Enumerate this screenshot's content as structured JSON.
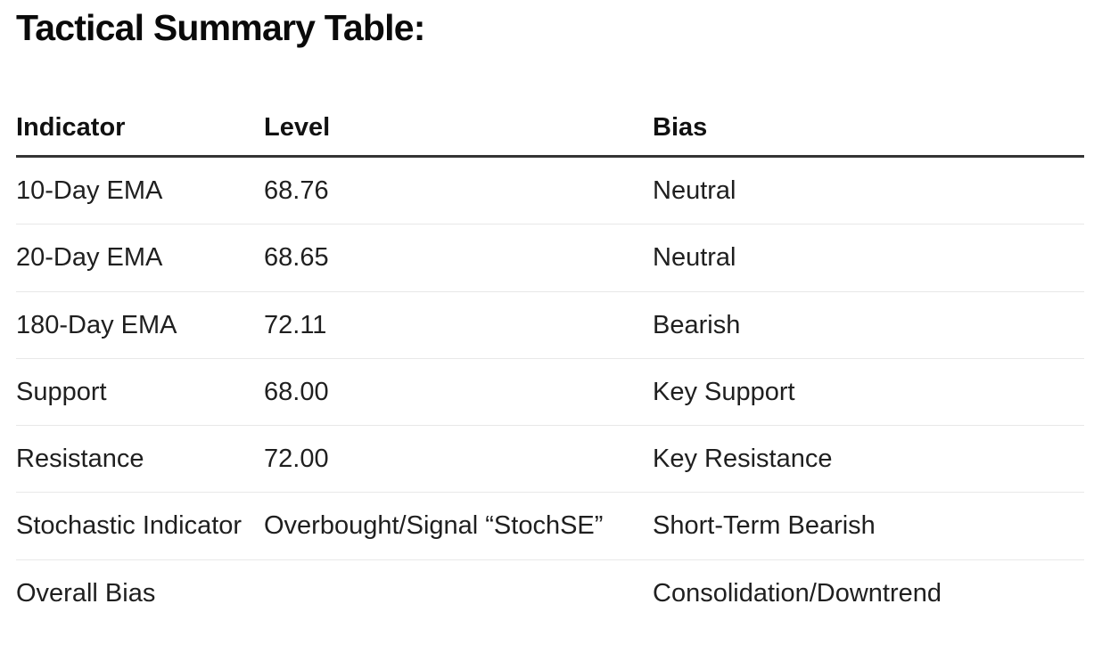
{
  "page": {
    "title": "Tactical Summary Table:"
  },
  "colors": {
    "background": "#ffffff",
    "title_text": "#0a0a0a",
    "body_text": "#1f1f1f",
    "header_rule": "#343434",
    "row_rule": "#e8e8e8"
  },
  "table": {
    "columns": [
      {
        "label": "Indicator"
      },
      {
        "label": "Level"
      },
      {
        "label": "Bias"
      }
    ],
    "rows": [
      {
        "indicator": "10-Day EMA",
        "level": "68.76",
        "bias": "Neutral"
      },
      {
        "indicator": "20-Day EMA",
        "level": "68.65",
        "bias": "Neutral"
      },
      {
        "indicator": "180-Day EMA",
        "level": "72.11",
        "bias": "Bearish"
      },
      {
        "indicator": "Support",
        "level": "68.00",
        "bias": "Key Support"
      },
      {
        "indicator": "Resistance",
        "level": "72.00",
        "bias": "Key Resistance"
      },
      {
        "indicator": "Stochastic Indicator",
        "level": "Overbought/Signal “StochSE”",
        "bias": "Short-Term Bearish"
      },
      {
        "indicator": "Overall Bias",
        "level": "",
        "bias": "Consolidation/Downtrend"
      }
    ]
  }
}
